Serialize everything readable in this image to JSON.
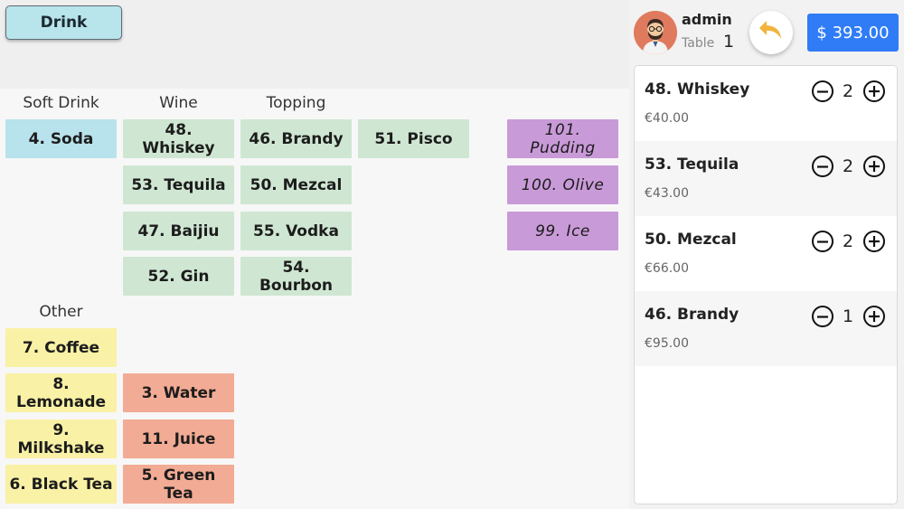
{
  "header": {
    "drink_label": "Drink"
  },
  "categories": {
    "soft_drink": "Soft Drink",
    "wine": "Wine",
    "topping": "Topping",
    "other": "Other"
  },
  "products": [
    {
      "label": "4. Soda",
      "color": "#b8e2ec"
    },
    {
      "label": "48. Whiskey",
      "color": "#cfe7d2"
    },
    {
      "label": "46. Brandy",
      "color": "#cfe7d2"
    },
    {
      "label": "51. Pisco",
      "color": "#cfe7d2"
    },
    {
      "label": "101. Pudding",
      "color": "#c99ad8"
    },
    {
      "label": "53. Tequila",
      "color": "#cfe7d2"
    },
    {
      "label": "50. Mezcal",
      "color": "#cfe7d2"
    },
    {
      "label": "100. Olive",
      "color": "#c99ad8"
    },
    {
      "label": "47. Baijiu",
      "color": "#cfe7d2"
    },
    {
      "label": "55. Vodka",
      "color": "#cfe7d2"
    },
    {
      "label": "99. Ice",
      "color": "#c99ad8"
    },
    {
      "label": "52. Gin",
      "color": "#cfe7d2"
    },
    {
      "label": "54. Bourbon",
      "color": "#cfe7d2"
    },
    {
      "label": "7. Coffee",
      "color": "#f9f1a5"
    },
    {
      "label": "8. Lemonade",
      "color": "#f9f1a5"
    },
    {
      "label": "3. Water",
      "color": "#f2ab94"
    },
    {
      "label": "9. Milkshake",
      "color": "#f9f1a5"
    },
    {
      "label": "11. Juice",
      "color": "#f2ab94"
    },
    {
      "label": "6. Black Tea",
      "color": "#f9f1a5"
    },
    {
      "label": "5. Green Tea",
      "color": "#f2ab94"
    }
  ],
  "user": {
    "name": "admin",
    "table_label": "Table",
    "table_number": "1"
  },
  "total": "$ 393.00",
  "order": [
    {
      "name": "48. Whiskey",
      "qty": "2",
      "price": "€40.00"
    },
    {
      "name": "53. Tequila",
      "qty": "2",
      "price": "€43.00"
    },
    {
      "name": "50. Mezcal",
      "qty": "2",
      "price": "€66.00"
    },
    {
      "name": "46. Brandy",
      "qty": "1",
      "price": "€95.00"
    }
  ],
  "icons": {
    "avatar": "user-avatar-icon",
    "undo": "undo-arrow-icon",
    "minus": "minus-circle-icon",
    "plus": "plus-circle-icon"
  },
  "colors": {
    "accent": "#2f7cf6",
    "undo_arrow": "#f2b43c"
  }
}
